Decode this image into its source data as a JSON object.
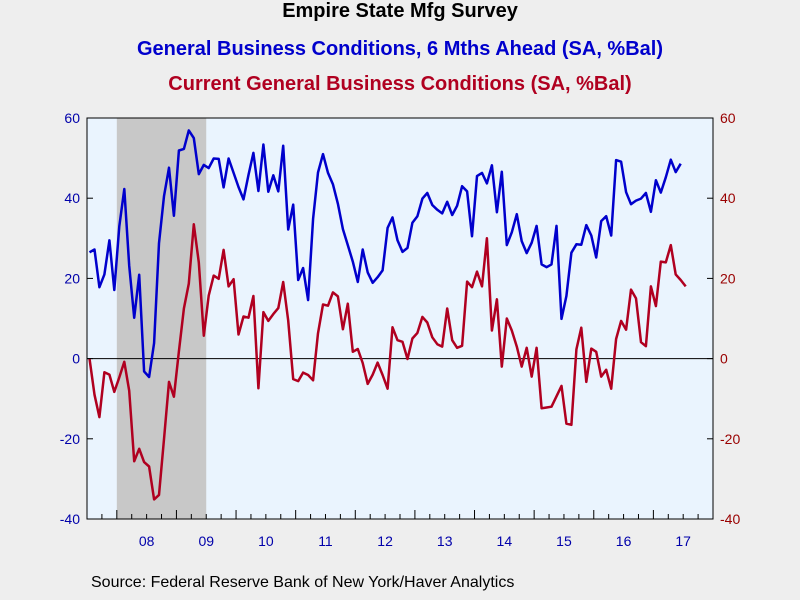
{
  "title": "Empire State Mfg Survey",
  "subtitle1": "General Business Conditions, 6 Mths Ahead (SA, %Bal)",
  "subtitle2": "Current General Business Conditions (SA, %Bal)",
  "source": "Source:  Federal Reserve Bank of New York/Haver Analytics",
  "colors": {
    "blue_series": "#0000cc",
    "red_series": "#b00020",
    "plot_bg": "#eaf4fe",
    "recession_shade": "#c8c8c8",
    "left_axis_text": "#0000aa",
    "right_axis_text": "#990000"
  },
  "chart_data": {
    "type": "line",
    "x_tick_labels": [
      "08",
      "09",
      "10",
      "11",
      "12",
      "13",
      "14",
      "15",
      "16",
      "17"
    ],
    "x_start": "2007-07",
    "x_end": "2017-12",
    "ylim_left": [
      -40,
      60
    ],
    "ylim_right": [
      -40,
      60
    ],
    "y_ticks_left": [
      "-40",
      "-20",
      "0",
      "20",
      "40",
      "60"
    ],
    "y_ticks_right": [
      "-40",
      "-20",
      "0",
      "20",
      "40",
      "60"
    ],
    "zero_line": true,
    "recession_shading": {
      "start": "2008-01",
      "end": "2009-06"
    },
    "series": [
      {
        "name": "General Business Conditions, 6 Mths Ahead (SA, %Bal)",
        "color": "#0000cc",
        "axis": "left",
        "values": [
          26.5,
          27.2,
          17.8,
          21.0,
          29.5,
          17.1,
          33.0,
          42.3,
          23.2,
          10.2,
          20.9,
          -3.2,
          -4.6,
          3.9,
          28.8,
          40.5,
          47.6,
          35.6,
          51.9,
          52.3,
          56.9,
          55.0,
          46.0,
          48.3,
          47.5,
          49.9,
          49.8,
          42.7,
          49.9,
          46.3,
          42.8,
          39.7,
          45.8,
          51.3,
          41.8,
          53.4,
          41.6,
          45.7,
          41.7,
          53.1,
          32.2,
          38.4,
          19.6,
          22.6,
          14.6,
          34.9,
          46.4,
          51.0,
          46.3,
          43.5,
          38.6,
          32.3,
          28.3,
          24.2,
          19.1,
          27.2,
          21.5,
          18.9,
          20.3,
          22.0,
          32.6,
          35.2,
          29.5,
          26.6,
          27.6,
          33.9,
          35.5,
          39.9,
          41.3,
          38.3,
          37.1,
          36.2,
          39.1,
          35.8,
          38.1,
          43.0,
          41.7,
          30.5,
          45.5,
          46.3,
          43.7,
          48.2,
          36.5,
          46.6,
          28.3,
          31.5,
          36.0,
          29.3,
          26.3,
          28.9,
          33.1,
          23.5,
          22.8,
          23.5,
          33.1,
          9.9,
          15.6,
          26.4,
          28.5,
          28.4,
          33.3,
          30.7,
          25.2,
          34.3,
          35.5,
          30.7,
          49.5,
          49.1,
          41.5,
          38.5,
          39.4,
          39.9,
          41.3,
          36.6,
          44.5,
          41.4,
          45.2,
          49.6,
          46.5,
          48.6
        ]
      },
      {
        "name": "Current General Business Conditions (SA, %Bal)",
        "color": "#b00020",
        "axis": "right",
        "values": [
          0.0,
          -9.0,
          -14.6,
          -3.4,
          -4.0,
          -8.3,
          -4.7,
          -0.8,
          -8.0,
          -25.6,
          -22.5,
          -25.8,
          -26.9,
          -35.1,
          -34.0,
          -20.1,
          -5.8,
          -9.5,
          1.8,
          12.5,
          18.7,
          33.5,
          24.0,
          5.7,
          15.7,
          20.7,
          19.9,
          27.1,
          18.0,
          19.8,
          6.0,
          10.5,
          10.2,
          15.6,
          -7.4,
          11.6,
          9.4,
          11.1,
          12.6,
          19.1,
          9.5,
          -5.1,
          -5.6,
          -3.5,
          -4.1,
          -5.4,
          6.3,
          13.5,
          13.2,
          16.5,
          15.5,
          7.3,
          13.7,
          1.7,
          2.4,
          -1.1,
          -6.3,
          -4.0,
          -1.0,
          -4.1,
          -7.5,
          7.8,
          4.6,
          4.2,
          -0.1,
          5.0,
          6.4,
          10.4,
          9.0,
          5.3,
          3.6,
          3.0,
          12.5,
          4.6,
          2.7,
          3.2,
          19.2,
          17.8,
          21.7,
          18.0,
          30.0,
          7.0,
          14.8,
          -2.0,
          10.0,
          7.0,
          3.0,
          -2.0,
          2.7,
          -4.5,
          2.7,
          -12.4,
          -12.2,
          -12.0,
          -9.4,
          -6.8,
          -16.2,
          -16.5,
          2.3,
          7.7,
          -5.8,
          2.5,
          1.7,
          -4.5,
          -2.8,
          -7.5,
          4.9,
          9.4,
          7.2,
          17.2,
          15.0,
          4.1,
          3.1,
          18.0,
          13.1,
          24.2,
          24.0,
          28.3,
          21.0,
          19.6,
          18.0
        ]
      }
    ]
  }
}
